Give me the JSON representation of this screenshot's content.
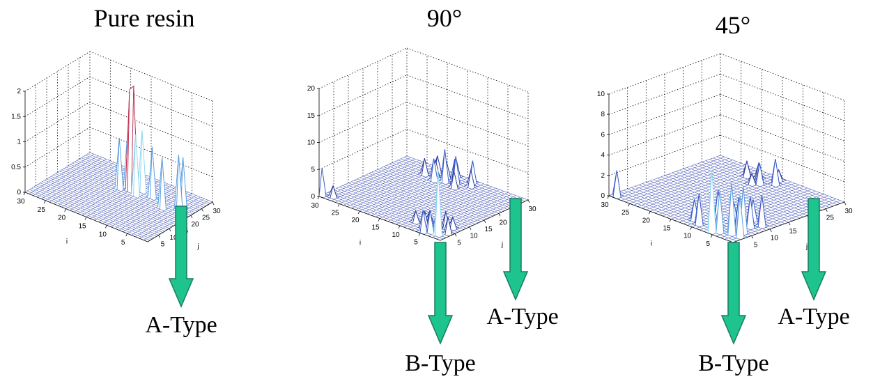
{
  "panels": [
    {
      "title": "Pure resin",
      "zticks": [
        "0",
        "0.5",
        "1",
        "1.5",
        "2"
      ],
      "zmax": 2,
      "iticks": [
        "5",
        "10",
        "15",
        "20",
        "25",
        "30"
      ],
      "jticks": [
        "5",
        "10",
        "15",
        "20",
        "25",
        "30"
      ],
      "ilabel": "i",
      "jlabel": "j",
      "peaks": [
        [
          14,
          20,
          2.1
        ],
        [
          15,
          20,
          2.0
        ],
        [
          13,
          19,
          1.2
        ],
        [
          13,
          22,
          1.2
        ],
        [
          16,
          21,
          1.1
        ],
        [
          17,
          19,
          1.0
        ],
        [
          6,
          18,
          1.0
        ],
        [
          3,
          20,
          1.1
        ],
        [
          3,
          22,
          1.0
        ],
        [
          10,
          21,
          1.0
        ]
      ],
      "callouts": [
        {
          "label": "A-Type",
          "kind": "A"
        }
      ]
    },
    {
      "title": "90°",
      "zticks": [
        "0",
        "5",
        "10",
        "15",
        "20"
      ],
      "zmax": 20,
      "iticks": [
        "5",
        "10",
        "15",
        "20",
        "25",
        "30"
      ],
      "jticks": [
        "5",
        "10",
        "15",
        "20",
        "25",
        "30"
      ],
      "ilabel": "i",
      "jlabel": "j",
      "peaks": [
        [
          2,
          2,
          12
        ],
        [
          3,
          3,
          5
        ],
        [
          4,
          2,
          4
        ],
        [
          1,
          4,
          3
        ],
        [
          3,
          6,
          3
        ],
        [
          5,
          1,
          4
        ],
        [
          4,
          5,
          3
        ],
        [
          6,
          3,
          3
        ],
        [
          2,
          7,
          2
        ],
        [
          9,
          4,
          2
        ],
        [
          7,
          6,
          2
        ],
        [
          30,
          1,
          5
        ],
        [
          28,
          2,
          2
        ],
        [
          15,
          26,
          5
        ],
        [
          17,
          25,
          6
        ],
        [
          19,
          24,
          4
        ],
        [
          16,
          27,
          4
        ],
        [
          18,
          27,
          3
        ],
        [
          20,
          26,
          3
        ],
        [
          14,
          24,
          3
        ],
        [
          13,
          29,
          4
        ],
        [
          21,
          28,
          3
        ],
        [
          22,
          25,
          3
        ],
        [
          12,
          27,
          3
        ],
        [
          17,
          29,
          3
        ]
      ],
      "callouts": [
        {
          "label": "B-Type",
          "kind": "B"
        },
        {
          "label": "A-Type",
          "kind": "A"
        }
      ]
    },
    {
      "title": "45°",
      "zticks": [
        "0",
        "2",
        "4",
        "6",
        "8",
        "10"
      ],
      "zmax": 10,
      "iticks": [
        "5",
        "10",
        "15",
        "20",
        "25",
        "30"
      ],
      "jticks": [
        "5",
        "10",
        "15",
        "20",
        "25",
        "30"
      ],
      "ilabel": "i",
      "jlabel": "j",
      "peaks": [
        [
          6,
          1,
          6
        ],
        [
          29,
          1,
          2.5
        ],
        [
          10,
          2,
          3
        ],
        [
          3,
          3,
          5
        ],
        [
          2,
          5,
          4.5
        ],
        [
          5,
          2,
          4
        ],
        [
          1,
          3,
          4
        ],
        [
          4,
          6,
          3
        ],
        [
          7,
          4,
          2
        ],
        [
          9,
          6,
          3
        ],
        [
          3,
          8,
          3
        ],
        [
          6,
          7,
          2
        ],
        [
          2,
          10,
          3
        ],
        [
          5,
          11,
          2
        ],
        [
          12,
          3,
          2
        ],
        [
          16,
          25,
          2
        ],
        [
          17,
          24,
          1
        ],
        [
          14,
          27,
          2.5
        ],
        [
          18,
          27,
          1.5
        ],
        [
          20,
          26,
          1.5
        ],
        [
          15,
          29,
          1
        ]
      ],
      "callouts": [
        {
          "label": "B-Type",
          "kind": "B"
        },
        {
          "label": "A-Type",
          "kind": "A"
        }
      ]
    }
  ]
}
